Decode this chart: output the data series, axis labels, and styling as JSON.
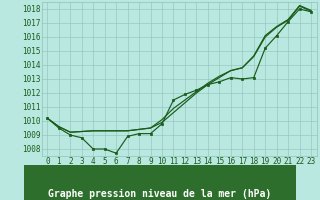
{
  "xlabel": "Graphe pression niveau de la mer (hPa)",
  "ylim": [
    1007.5,
    1018.5
  ],
  "xlim": [
    -0.5,
    23.5
  ],
  "yticks": [
    1008,
    1009,
    1010,
    1011,
    1012,
    1013,
    1014,
    1015,
    1016,
    1017,
    1018
  ],
  "xticks": [
    0,
    1,
    2,
    3,
    4,
    5,
    6,
    7,
    8,
    9,
    10,
    11,
    12,
    13,
    14,
    15,
    16,
    17,
    18,
    19,
    20,
    21,
    22,
    23
  ],
  "bg_color": "#b8e8e0",
  "grid_color": "#90c0b8",
  "line_color": "#1a5c1a",
  "label_bg_color": "#2d6e2d",
  "label_text_color": "#ffffff",
  "series_marked": [
    1010.2,
    1009.5,
    1009.0,
    1008.8,
    1008.0,
    1008.0,
    1007.7,
    1008.9,
    1009.1,
    1009.1,
    1009.8,
    1011.5,
    1011.9,
    1012.2,
    1012.6,
    1012.8,
    1013.1,
    1013.0,
    1013.1,
    1015.2,
    1016.1,
    1017.1,
    1018.0,
    1017.8
  ],
  "series_smooth1": [
    1010.2,
    1009.6,
    1009.2,
    1009.25,
    1009.3,
    1009.3,
    1009.3,
    1009.3,
    1009.4,
    1009.5,
    1009.9,
    1010.6,
    1011.3,
    1012.0,
    1012.6,
    1013.1,
    1013.6,
    1013.8,
    1014.6,
    1016.0,
    1016.7,
    1017.2,
    1018.2,
    1017.85
  ],
  "series_smooth2": [
    1010.2,
    1009.6,
    1009.2,
    1009.25,
    1009.3,
    1009.3,
    1009.3,
    1009.3,
    1009.4,
    1009.5,
    1010.1,
    1010.9,
    1011.5,
    1012.1,
    1012.7,
    1013.2,
    1013.6,
    1013.8,
    1014.65,
    1016.1,
    1016.75,
    1017.25,
    1018.25,
    1017.9
  ],
  "figsize": [
    3.2,
    2.0
  ],
  "dpi": 100,
  "tick_fontsize": 5.5,
  "label_fontsize": 7.0
}
